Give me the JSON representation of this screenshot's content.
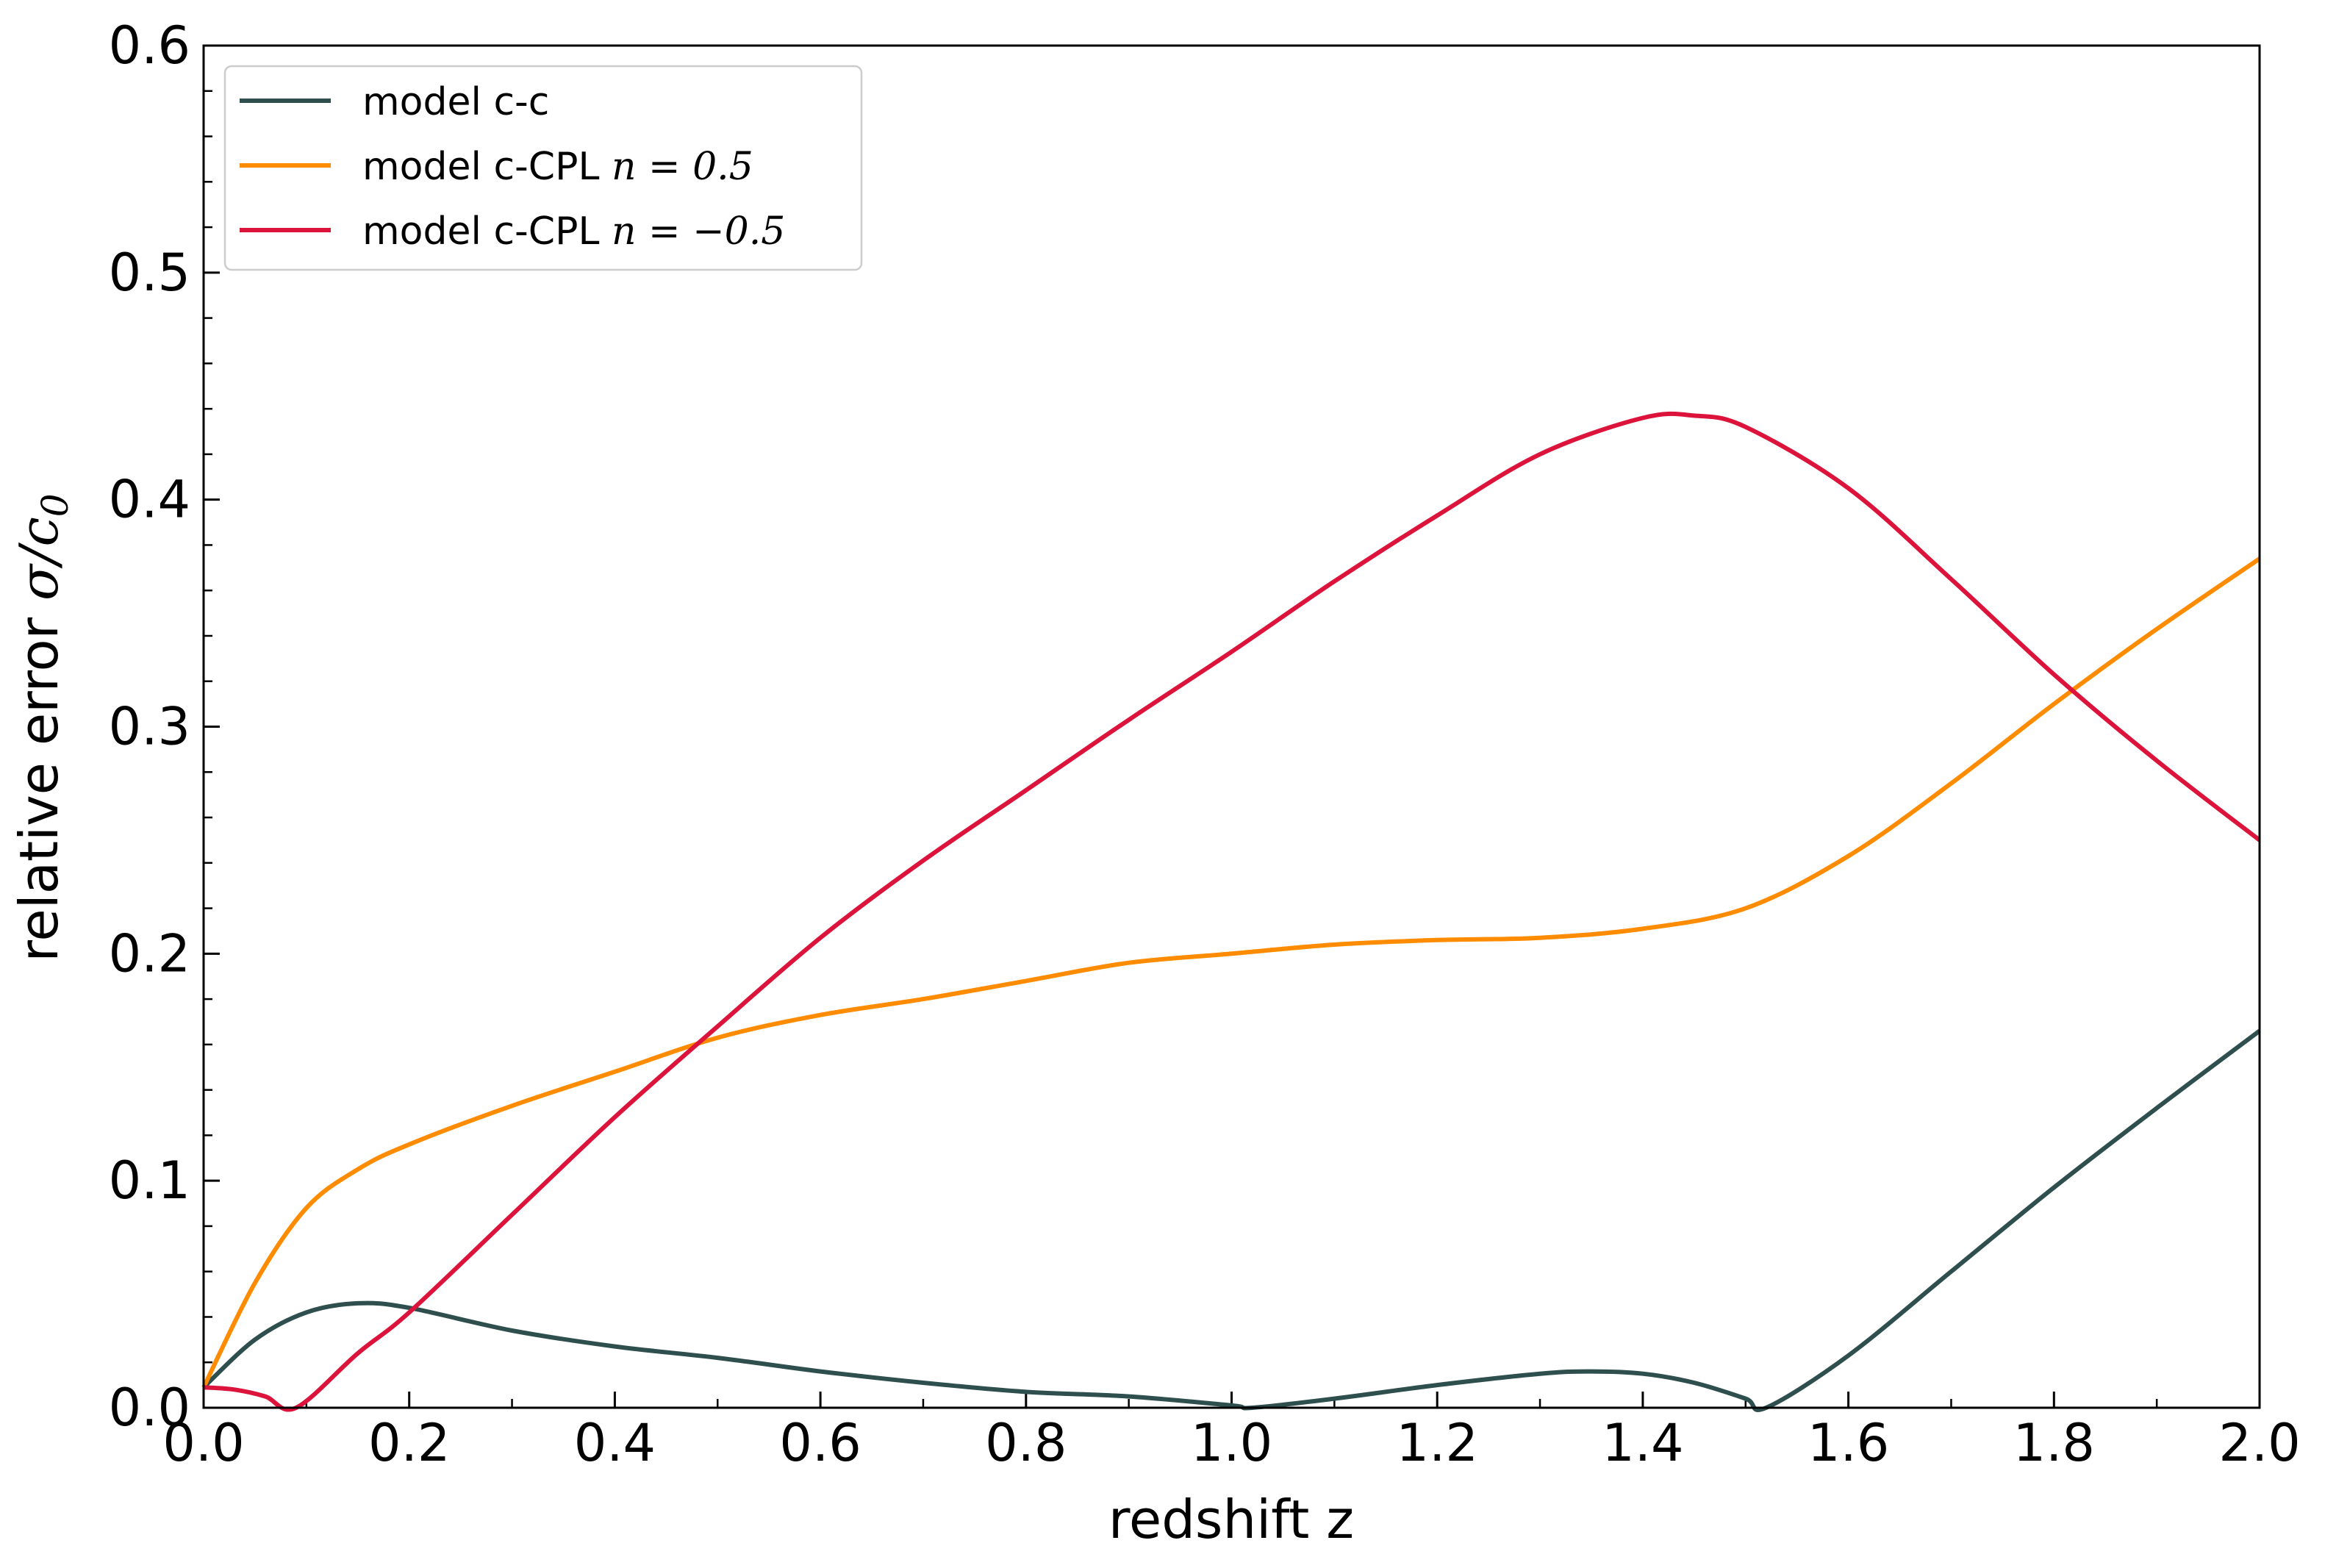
{
  "chart_data": {
    "type": "line",
    "xlabel": "redshift z",
    "ylabel_text": "relative error ",
    "ylabel_math": "σ/c",
    "ylabel_sub": "0",
    "xlim": [
      0.0,
      2.0
    ],
    "ylim": [
      0.0,
      0.6
    ],
    "xticks": [
      "0.0",
      "0.2",
      "0.4",
      "0.6",
      "0.8",
      "1.0",
      "1.2",
      "1.4",
      "1.6",
      "1.8",
      "2.0"
    ],
    "yticks": [
      "0.0",
      "0.1",
      "0.2",
      "0.3",
      "0.4",
      "0.5",
      "0.6"
    ],
    "legend_position": "top-left",
    "grid": false,
    "series": [
      {
        "name": "model c-c",
        "legend_text": "model c-c",
        "legend_math": "",
        "color": "#2f4f4f",
        "x": [
          0.0,
          0.05,
          0.1,
          0.15,
          0.2,
          0.3,
          0.4,
          0.5,
          0.6,
          0.7,
          0.8,
          0.9,
          1.0,
          1.02,
          1.1,
          1.2,
          1.3,
          1.35,
          1.4,
          1.45,
          1.5,
          1.52,
          1.6,
          1.7,
          1.8,
          1.9,
          2.0
        ],
        "y": [
          0.009,
          0.03,
          0.042,
          0.046,
          0.044,
          0.034,
          0.027,
          0.022,
          0.016,
          0.011,
          0.007,
          0.005,
          0.001,
          0.0,
          0.004,
          0.01,
          0.015,
          0.016,
          0.015,
          0.011,
          0.004,
          0.0,
          0.023,
          0.06,
          0.097,
          0.132,
          0.166
        ]
      },
      {
        "name": "model c-CPL n = 0.5",
        "legend_text": "model c-CPL ",
        "legend_math": "n = 0.5",
        "color": "#ff8c00",
        "x": [
          0.0,
          0.05,
          0.1,
          0.15,
          0.2,
          0.3,
          0.4,
          0.5,
          0.6,
          0.7,
          0.8,
          0.9,
          1.0,
          1.1,
          1.2,
          1.3,
          1.4,
          1.5,
          1.6,
          1.7,
          1.8,
          1.9,
          2.0
        ],
        "y": [
          0.009,
          0.055,
          0.088,
          0.105,
          0.116,
          0.133,
          0.148,
          0.163,
          0.173,
          0.18,
          0.188,
          0.196,
          0.2,
          0.204,
          0.206,
          0.207,
          0.211,
          0.22,
          0.243,
          0.275,
          0.31,
          0.343,
          0.374
        ]
      },
      {
        "name": "model c-CPL n = −0.5",
        "legend_text": "model c-CPL ",
        "legend_math": "n = −0.5",
        "color": "#dc143c",
        "x": [
          0.0,
          0.03,
          0.06,
          0.09,
          0.15,
          0.2,
          0.3,
          0.4,
          0.5,
          0.6,
          0.7,
          0.8,
          0.9,
          1.0,
          1.1,
          1.2,
          1.3,
          1.4,
          1.45,
          1.5,
          1.6,
          1.7,
          1.8,
          1.9,
          2.0
        ],
        "y": [
          0.009,
          0.008,
          0.005,
          0.0,
          0.024,
          0.042,
          0.085,
          0.128,
          0.168,
          0.207,
          0.241,
          0.272,
          0.303,
          0.333,
          0.364,
          0.393,
          0.42,
          0.436,
          0.437,
          0.432,
          0.405,
          0.365,
          0.323,
          0.285,
          0.25
        ]
      }
    ]
  }
}
